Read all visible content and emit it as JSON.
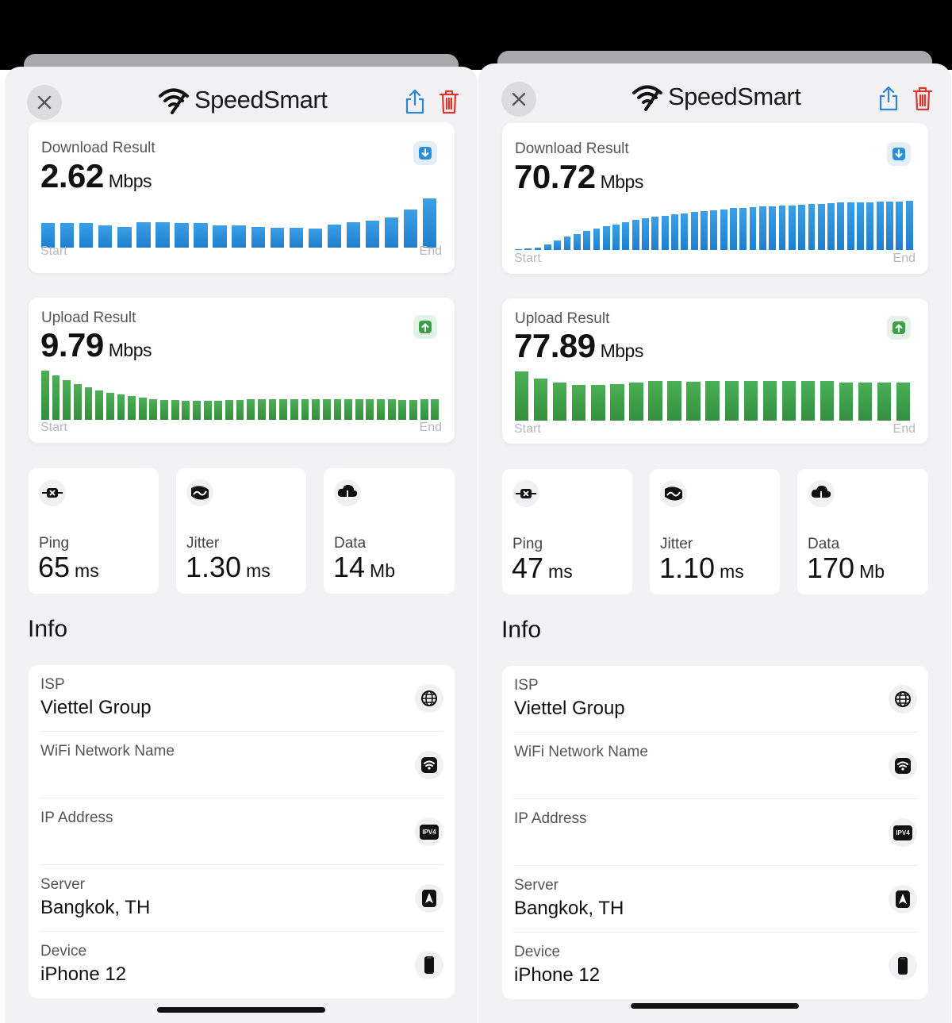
{
  "app": {
    "name": "SpeedSmart"
  },
  "colors": {
    "download": "#2a8fd8",
    "upload": "#3e9e48",
    "delete": "#e0342f",
    "share": "#2b86d9"
  },
  "labels": {
    "download": "Download Result",
    "upload": "Upload Result",
    "start": "Start",
    "end": "End",
    "unit_speed": "Mbps",
    "ping": "Ping",
    "jitter": "Jitter",
    "data": "Data",
    "ms": "ms",
    "mb": "Mb",
    "info": "Info"
  },
  "icons": [
    "close-icon",
    "wifi-logo-icon",
    "share-icon",
    "trash-icon",
    "download-icon",
    "upload-icon",
    "ping-icon",
    "jitter-icon",
    "cloud-download-icon",
    "globe-icon",
    "wifi-icon",
    "ipv4-icon",
    "server-icon",
    "phone-icon"
  ],
  "results": [
    {
      "download": {
        "value": "2.62",
        "bars": [
          0.5,
          0.5,
          0.5,
          0.45,
          0.42,
          0.52,
          0.52,
          0.5,
          0.5,
          0.45,
          0.45,
          0.42,
          0.4,
          0.4,
          0.38,
          0.47,
          0.52,
          0.55,
          0.62,
          0.78,
          1.0
        ]
      },
      "upload": {
        "value": "9.79",
        "bars": [
          1.0,
          0.9,
          0.8,
          0.73,
          0.66,
          0.6,
          0.55,
          0.52,
          0.48,
          0.45,
          0.42,
          0.4,
          0.4,
          0.38,
          0.38,
          0.38,
          0.38,
          0.4,
          0.4,
          0.42,
          0.42,
          0.42,
          0.42,
          0.42,
          0.42,
          0.42,
          0.42,
          0.42,
          0.42,
          0.42,
          0.42,
          0.42,
          0.42,
          0.4,
          0.4,
          0.42,
          0.42
        ]
      },
      "stats": {
        "ping": "65",
        "jitter": "1.30",
        "data": "14"
      },
      "info": [
        {
          "label": "ISP",
          "value": "Viettel Group",
          "icon": "globe-icon"
        },
        {
          "label": "WiFi Network Name",
          "value": "",
          "icon": "wifi-icon"
        },
        {
          "label": "IP Address",
          "value": "",
          "icon": "ipv4-icon",
          "icon_text": "IPV4"
        },
        {
          "label": "Server",
          "value": "Bangkok, TH",
          "icon": "server-icon"
        },
        {
          "label": "Device",
          "value": "iPhone 12",
          "icon": "phone-icon"
        }
      ]
    },
    {
      "download": {
        "value": "70.72",
        "bars": [
          0.02,
          0.03,
          0.05,
          0.12,
          0.2,
          0.27,
          0.33,
          0.38,
          0.43,
          0.48,
          0.52,
          0.57,
          0.61,
          0.64,
          0.67,
          0.7,
          0.73,
          0.75,
          0.77,
          0.79,
          0.81,
          0.83,
          0.85,
          0.86,
          0.87,
          0.88,
          0.89,
          0.9,
          0.91,
          0.92,
          0.93,
          0.94,
          0.95,
          0.96,
          0.96,
          0.97,
          0.97,
          0.98,
          0.98,
          0.99,
          1.0
        ]
      },
      "upload": {
        "value": "77.89",
        "bars": [
          1.0,
          0.85,
          0.78,
          0.72,
          0.72,
          0.75,
          0.78,
          0.8,
          0.8,
          0.79,
          0.8,
          0.8,
          0.81,
          0.81,
          0.81,
          0.8,
          0.8,
          0.78,
          0.78,
          0.78,
          0.77
        ]
      },
      "stats": {
        "ping": "47",
        "jitter": "1.10",
        "data": "170"
      },
      "info": [
        {
          "label": "ISP",
          "value": "Viettel Group",
          "icon": "globe-icon"
        },
        {
          "label": "WiFi Network Name",
          "value": "",
          "icon": "wifi-icon"
        },
        {
          "label": "IP Address",
          "value": "",
          "icon": "ipv4-icon",
          "icon_text": "IPV4"
        },
        {
          "label": "Server",
          "value": "Bangkok, TH",
          "icon": "server-icon"
        },
        {
          "label": "Device",
          "value": "iPhone 12",
          "icon": "phone-icon"
        }
      ]
    }
  ]
}
